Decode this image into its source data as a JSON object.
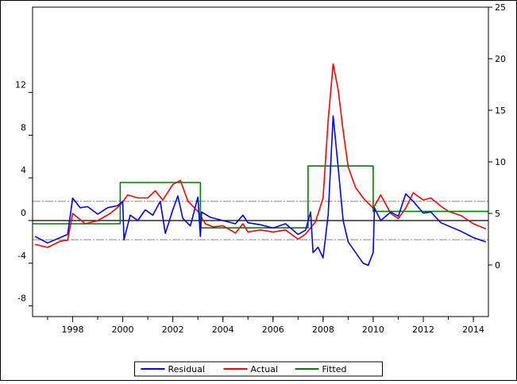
{
  "chart_data": {
    "type": "line",
    "title": "",
    "x_range": [
      1996.4,
      2014.6
    ],
    "x_ticks": [
      "1998",
      "2000",
      "2002",
      "2004",
      "2006",
      "2008",
      "2010",
      "2012",
      "2014"
    ],
    "left_axis": {
      "range": [
        -9,
        20
      ],
      "ticks": [
        "-8",
        "-4",
        "0",
        "4",
        "8",
        "12"
      ],
      "series": [
        "Residual"
      ]
    },
    "right_axis": {
      "range": [
        -5,
        25
      ],
      "ticks": [
        "0",
        "5",
        "10",
        "15",
        "20",
        "25"
      ],
      "series": [
        "Actual",
        "Fitted"
      ]
    },
    "residual_bands": [
      -1.8,
      0,
      1.8
    ],
    "legend_position": "bottom",
    "colors": {
      "Residual": "#0000ff",
      "Actual": "#ff0000",
      "Fitted": "#008000"
    },
    "series": [
      {
        "name": "Actual",
        "axis": "right",
        "x": [
          1996.5,
          1997.0,
          1997.5,
          1997.8,
          1998.0,
          1998.5,
          1999.0,
          1999.5,
          1999.9,
          2000.2,
          2000.6,
          2001.0,
          2001.3,
          2001.6,
          2002.0,
          2002.3,
          2002.6,
          2003.0,
          2003.3,
          2003.6,
          2004.0,
          2004.5,
          2004.8,
          2005.0,
          2005.5,
          2006.0,
          2006.5,
          2007.0,
          2007.3,
          2007.7,
          2008.0,
          2008.2,
          2008.4,
          2008.6,
          2008.8,
          2009.0,
          2009.3,
          2009.6,
          2010.0,
          2010.3,
          2010.7,
          2011.0,
          2011.3,
          2011.6,
          2012.0,
          2012.3,
          2012.7,
          2013.0,
          2013.5,
          2014.0,
          2014.5
        ],
        "y": [
          2.0,
          1.7,
          2.3,
          2.4,
          5.0,
          4.0,
          4.3,
          5.0,
          5.8,
          6.8,
          6.5,
          6.5,
          7.2,
          6.3,
          7.8,
          8.2,
          6.2,
          5.2,
          4.0,
          3.7,
          3.8,
          3.1,
          4.0,
          3.2,
          3.4,
          3.2,
          3.4,
          2.5,
          3.0,
          4.2,
          6.5,
          14.0,
          19.5,
          17.0,
          13.0,
          9.5,
          7.5,
          6.5,
          5.5,
          6.8,
          5.0,
          4.5,
          5.5,
          7.0,
          6.3,
          6.5,
          5.7,
          5.2,
          4.8,
          4.0,
          3.5
        ]
      },
      {
        "name": "Fitted",
        "axis": "right",
        "x": [
          1996.4,
          1999.9,
          1999.9,
          2003.1,
          2003.1,
          2007.4,
          2007.4,
          2010.0,
          2010.0,
          2014.6
        ],
        "y": [
          4.0,
          4.0,
          8.0,
          8.0,
          3.6,
          3.6,
          9.6,
          9.6,
          5.2,
          5.2
        ]
      },
      {
        "name": "Residual",
        "axis": "left",
        "x": [
          1996.5,
          1997.0,
          1997.5,
          1997.8,
          1998.0,
          1998.3,
          1998.6,
          1999.0,
          1999.4,
          1999.8,
          2000.0,
          2000.05,
          2000.3,
          2000.6,
          2000.9,
          2001.2,
          2001.5,
          2001.7,
          2002.0,
          2002.2,
          2002.4,
          2002.7,
          2003.0,
          2003.1,
          2003.15,
          2003.5,
          2004.0,
          2004.5,
          2004.8,
          2005.0,
          2005.5,
          2006.0,
          2006.5,
          2007.0,
          2007.3,
          2007.5,
          2007.6,
          2007.8,
          2008.0,
          2008.2,
          2008.4,
          2008.6,
          2008.8,
          2009.0,
          2009.3,
          2009.6,
          2009.8,
          2010.0,
          2010.05,
          2010.3,
          2010.7,
          2011.0,
          2011.3,
          2011.6,
          2012.0,
          2012.3,
          2012.7,
          2013.0,
          2013.5,
          2014.0,
          2014.5
        ],
        "y": [
          -1.5,
          -2.1,
          -1.6,
          -1.3,
          2.1,
          1.2,
          1.3,
          0.6,
          1.2,
          1.4,
          1.8,
          -1.8,
          0.5,
          0.0,
          1.0,
          0.5,
          1.8,
          -1.2,
          1.0,
          2.3,
          0.2,
          -0.5,
          2.2,
          -1.5,
          0.8,
          0.3,
          0.0,
          -0.3,
          0.5,
          -0.2,
          -0.4,
          -0.7,
          -0.3,
          -1.3,
          -0.9,
          0.8,
          -3.0,
          -2.5,
          -3.5,
          0.5,
          9.8,
          5.0,
          0.0,
          -2.0,
          -3.0,
          -4.0,
          -4.2,
          -3.0,
          1.2,
          0.0,
          0.8,
          0.4,
          2.5,
          1.8,
          0.7,
          0.8,
          -0.2,
          -0.5,
          -1.0,
          -1.6,
          -2.0
        ]
      }
    ],
    "legend": [
      "Residual",
      "Actual",
      "Fitted"
    ]
  }
}
